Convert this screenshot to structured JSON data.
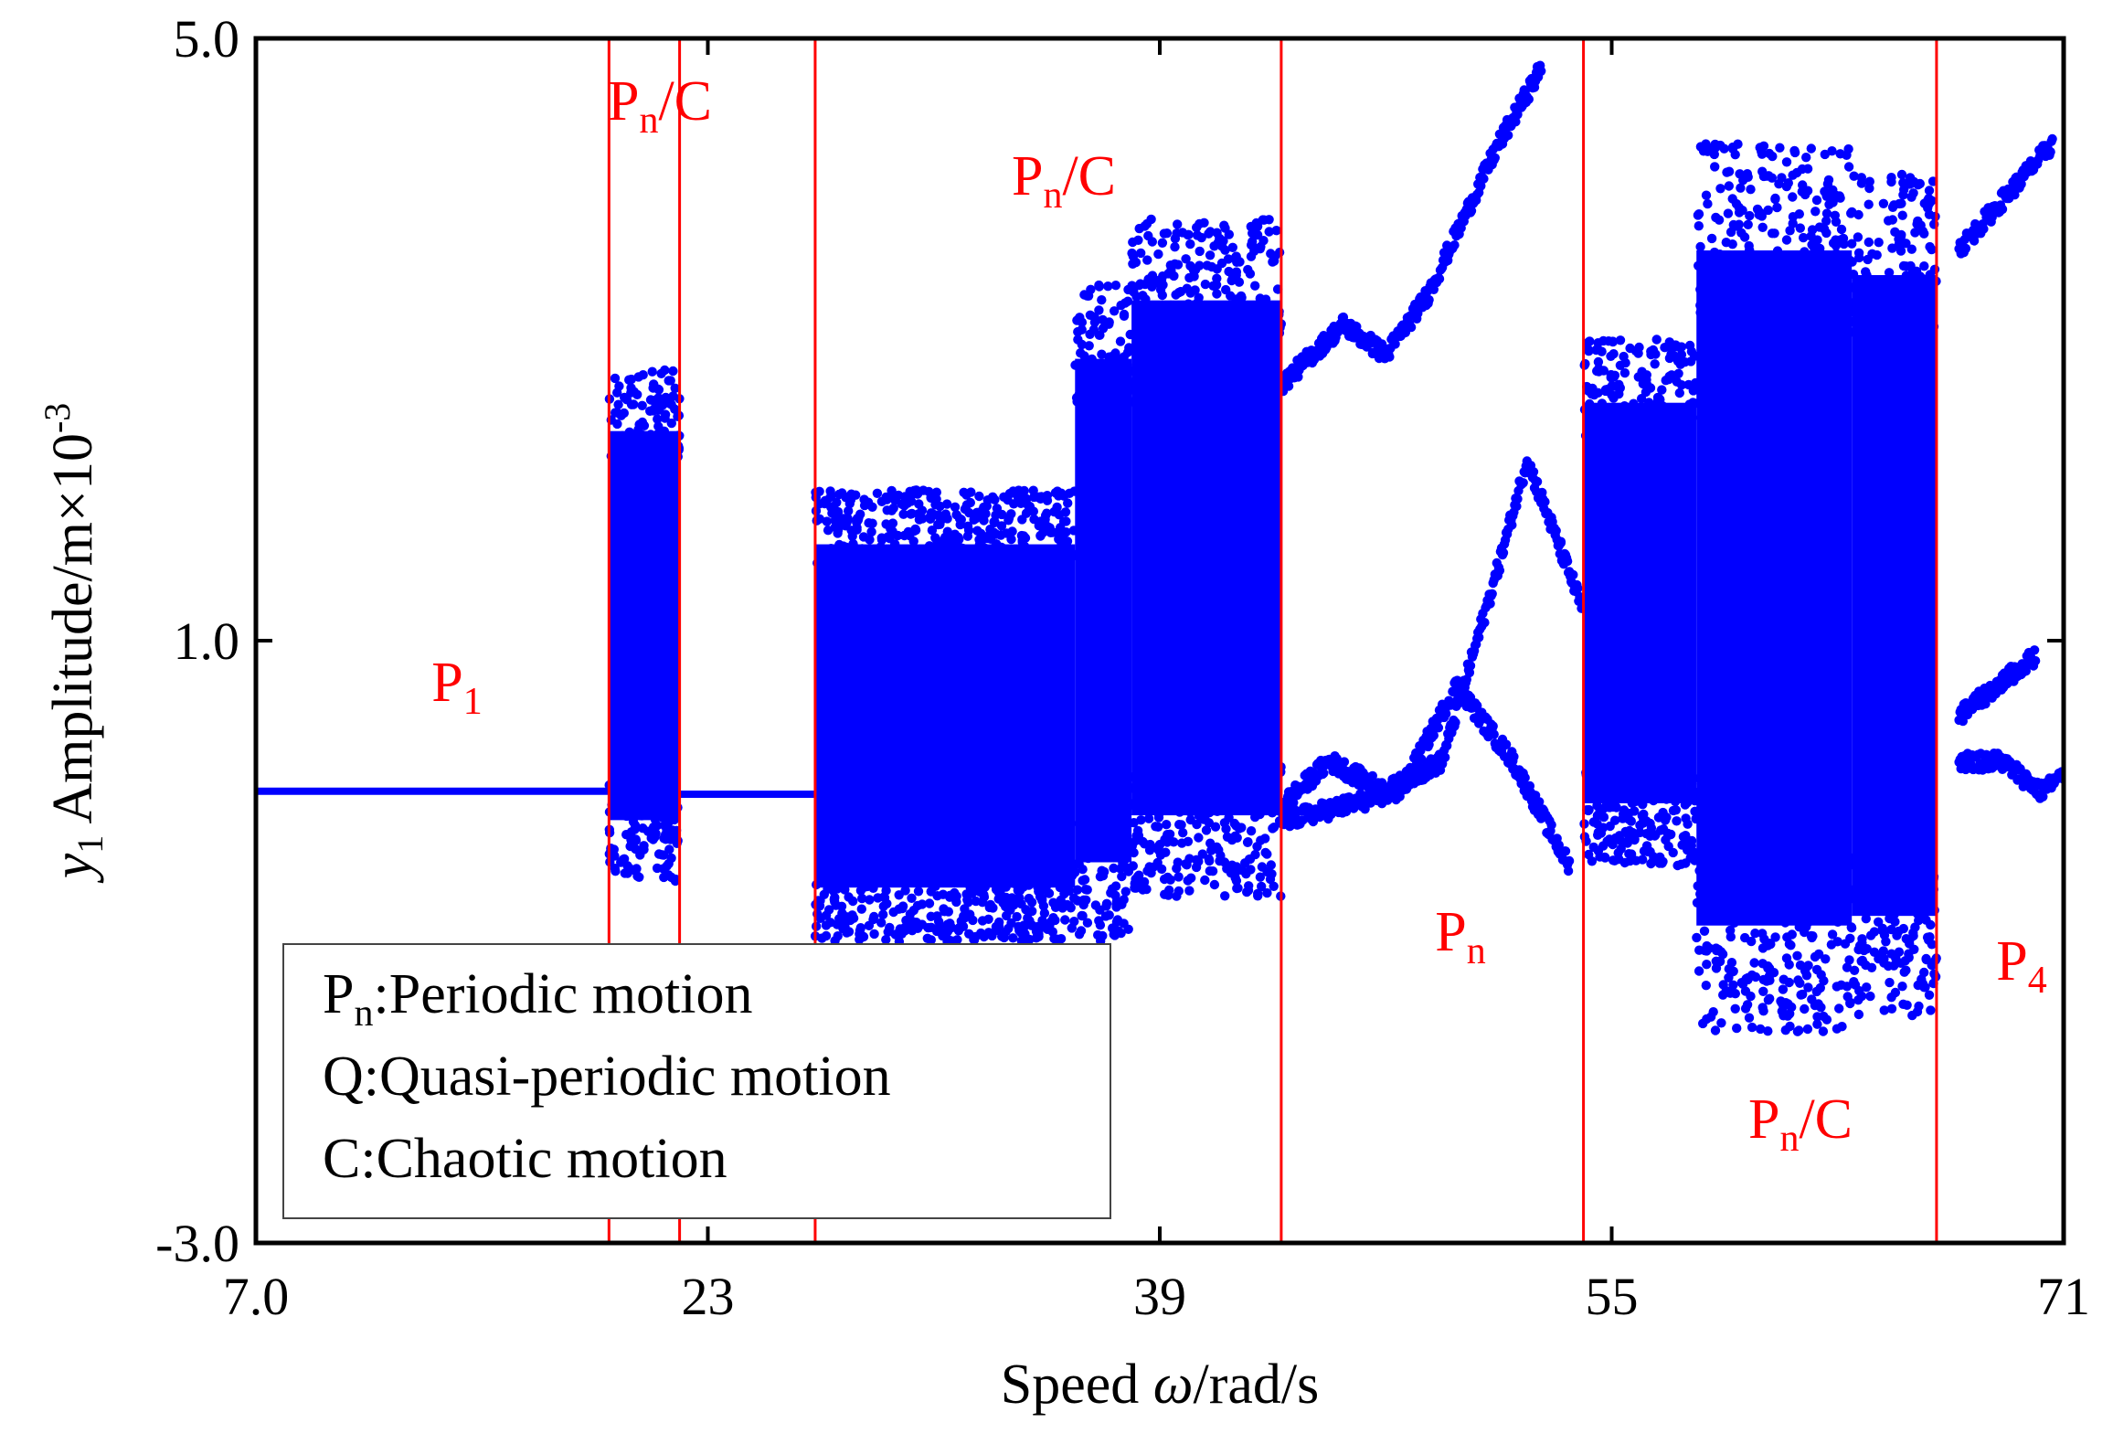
{
  "chart_data": {
    "type": "scatter",
    "title": "",
    "xlabel": "Speed ω/rad/s",
    "xlabel_parts": {
      "prefix": "Speed ",
      "symbol": "ω",
      "suffix": "/rad/s"
    },
    "ylabel": "y1 Amplitude/m×10-3",
    "ylabel_parts": {
      "var": "y",
      "sub": "1",
      "text": " Amplitude/m×10",
      "sup": "-3"
    },
    "xlim": [
      7.0,
      71
    ],
    "ylim": [
      -3.0,
      5.0
    ],
    "x_ticks": [
      7.0,
      23,
      39,
      55,
      71
    ],
    "x_tick_labels": [
      "7.0",
      "23",
      "39",
      "55",
      "71"
    ],
    "y_ticks": [
      -3.0,
      1.0,
      5.0
    ],
    "y_tick_labels": [
      "-3.0",
      "1.0",
      "5.0"
    ],
    "grid": false,
    "point_color": "#0000ff",
    "boundary_color": "#ff0000",
    "region_boundaries": [
      19.5,
      22.0,
      26.8,
      43.3,
      54.0,
      66.5
    ],
    "region_labels": [
      {
        "base": "P",
        "sub": "1",
        "suffix": "",
        "x": 13.5,
        "y": 0.3
      },
      {
        "base": "P",
        "sub": "n",
        "suffix": "/C",
        "x": 21.0,
        "y": 4.5
      },
      {
        "base": "P",
        "sub": "n",
        "suffix": "/C",
        "x": 34.0,
        "y": 3.7
      },
      {
        "base": "P",
        "sub": "n",
        "suffix": "",
        "x": 49.0,
        "y": -1.3
      },
      {
        "base": "P",
        "sub": "n",
        "suffix": "/C",
        "x": 62.0,
        "y": -2.4
      },
      {
        "base": "P",
        "sub": "4",
        "suffix": "",
        "x": 69.5,
        "y": -1.4
      }
    ],
    "legend": {
      "position": "bottom-left",
      "entries": [
        {
          "base": "P",
          "sub": "n",
          "text": ":Periodic motion"
        },
        {
          "base": "",
          "sub": "",
          "text": "Q:Quasi-periodic motion"
        },
        {
          "base": "",
          "sub": "",
          "text": "C:Chaotic motion"
        }
      ]
    },
    "series": [
      {
        "type": "band",
        "x": [
          7.0,
          19.5
        ],
        "y": [
          0.0,
          0.0
        ]
      },
      {
        "type": "band",
        "x": [
          19.5,
          22.0
        ],
        "y": [
          -0.6,
          2.8
        ]
      },
      {
        "type": "band",
        "x": [
          22.0,
          26.8
        ],
        "y": [
          -0.02,
          0.02
        ]
      },
      {
        "type": "band",
        "x": [
          26.8,
          36.0
        ],
        "y": [
          -1.0,
          2.0
        ]
      },
      {
        "type": "band",
        "x": [
          36.0,
          38.0
        ],
        "y": [
          -1.0,
          3.4
        ]
      },
      {
        "type": "band",
        "x": [
          38.0,
          43.3
        ],
        "y": [
          -0.7,
          3.8
        ]
      },
      {
        "type": "curve",
        "points": [
          [
            43.3,
            2.7
          ],
          [
            45.5,
            3.1
          ],
          [
            47.0,
            2.9
          ],
          [
            48.5,
            3.3
          ],
          [
            51.0,
            4.3
          ],
          [
            52.5,
            4.8
          ]
        ]
      },
      {
        "type": "curve",
        "points": [
          [
            43.3,
            -0.1
          ],
          [
            45.0,
            0.2
          ],
          [
            47.0,
            0.0
          ],
          [
            49.0,
            0.2
          ],
          [
            51.0,
            1.5
          ],
          [
            52.0,
            2.2
          ],
          [
            53.2,
            1.6
          ],
          [
            54.0,
            1.2
          ]
        ]
      },
      {
        "type": "curve",
        "points": [
          [
            43.3,
            -0.2
          ],
          [
            45.5,
            -0.1
          ],
          [
            47.5,
            0.0
          ],
          [
            49.5,
            0.7
          ],
          [
            51.5,
            0.2
          ],
          [
            53.5,
            -0.5
          ]
        ]
      },
      {
        "type": "band",
        "x": [
          54.0,
          58.0
        ],
        "y": [
          -0.5,
          3.0
        ]
      },
      {
        "type": "band",
        "x": [
          58.0,
          63.5
        ],
        "y": [
          -1.6,
          4.3
        ]
      },
      {
        "type": "band",
        "x": [
          63.5,
          66.5
        ],
        "y": [
          -1.5,
          4.1
        ]
      },
      {
        "type": "curve",
        "points": [
          [
            67.3,
            3.6
          ],
          [
            70.6,
            4.3
          ]
        ]
      },
      {
        "type": "curve",
        "points": [
          [
            67.3,
            0.5
          ],
          [
            70.0,
            0.9
          ]
        ]
      },
      {
        "type": "curve",
        "points": [
          [
            67.3,
            0.2
          ],
          [
            68.8,
            0.2
          ],
          [
            70.2,
            0.0
          ],
          [
            71.0,
            0.1
          ]
        ]
      }
    ]
  }
}
